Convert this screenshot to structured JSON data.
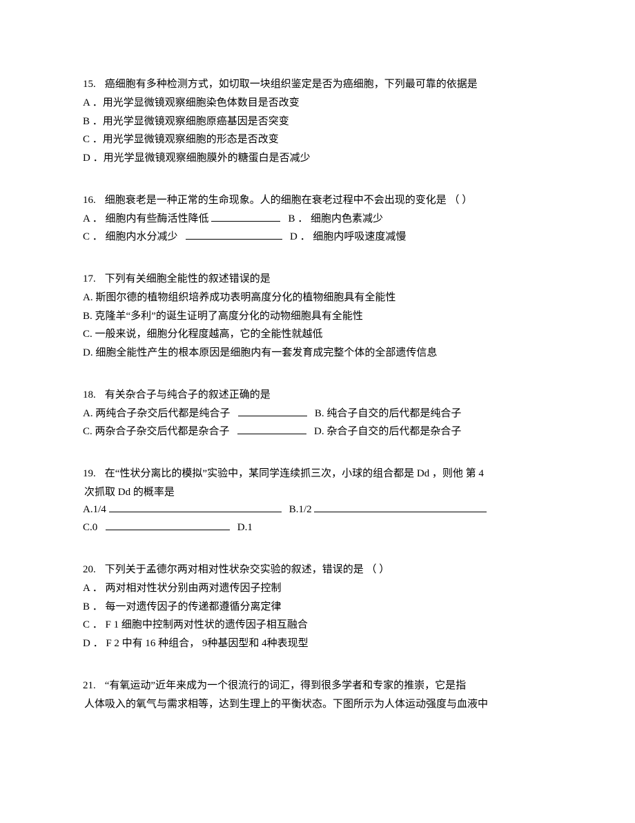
{
  "questions": [
    {
      "num": "15.",
      "stem": "癌细胞有多种检测方式，如切取一块组织鉴定是否为癌细胞，下列最可靠的依据是",
      "opts": [
        "A ．用光学显微镜观察细胞染色体数目是否改变",
        "B ．用光学显微镜观察细胞原癌基因是否突变",
        "C ．用光学显微镜观察细胞的形态是否改变",
        "D ．用光学显微镜观察细胞膜外的糖蛋白是否减少"
      ]
    },
    {
      "num": "16.",
      "stem": "细胞衰老是一种正常的生命现象。人的细胞在衰老过程中不会出现的变化是 （ ）",
      "rowA": {
        "a_pre": "A ．  细胞内有些酶活性降低",
        "b": "B ．  细胞内色素减少"
      },
      "rowB": {
        "c_pre": "C ．  细胞内水分减少",
        "d": "D ．  细胞内呼吸速度减慢"
      }
    },
    {
      "num": "17.",
      "stem": "下列有关细胞全能性的叙述错误的是",
      "opts": [
        "A.  斯图尔德的植物组织培养成功表明高度分化的植物细胞具有全能性",
        "B.    克隆羊“多利”的诞生证明了高度分化的动物细胞具有全能性",
        "C.    一般来说，细胞分化程度越高，它的全能性就越低",
        "D.    细胞全能性产生的根本原因是细胞内有一套发育成完整个体的全部遗传信息"
      ]
    },
    {
      "num": "18.",
      "stem": "有关杂合子与纯合子的叙述正确的是",
      "rowA": {
        "a_pre": "A. 两纯合子杂交后代都是纯合子",
        "b": "B. 纯合子自交的后代都是纯合子"
      },
      "rowB": {
        "c_pre": "C. 两杂合子杂交后代都是杂合子",
        "d": "D. 杂合子自交的后代都是杂合子"
      }
    },
    {
      "num": "19.",
      "stem_parts": {
        "p1": "在“性状分离比的模拟”实验中，某同学连续抓三次，小球的组合都是  Dd ，则他  第  4",
        "p2": "次抓取  Dd 的概率是"
      },
      "row1": {
        "a": "A.1/4",
        "b": "B.1/2"
      },
      "row2": {
        "c": "C.0",
        "d": "D.1"
      }
    },
    {
      "num": "20.",
      "stem": "下列关于孟德尔两对相对性状杂交实验的叙述，错误的是 （  ）",
      "opts": [
        "A ．  两对相对性状分别由两对遗传因子控制",
        "B ．  每一对遗传因子的传递都遵循分离定律",
        "C ． F 1 细胞中控制两对性状的遗传因子相互融合",
        "D ． F 2 中有  16 种组合，  9种基因型和  4种表现型"
      ]
    },
    {
      "num": "21.",
      "stem_parts": {
        "p1": "“有氧运动”近年来成为一个很流行的词汇，得到很多学者和专家的推崇，它是指",
        "p2": "人体吸入的氧气与需求相等，达到生理上的平衡状态。下图所示为人体运动强度与血液中"
      }
    }
  ]
}
